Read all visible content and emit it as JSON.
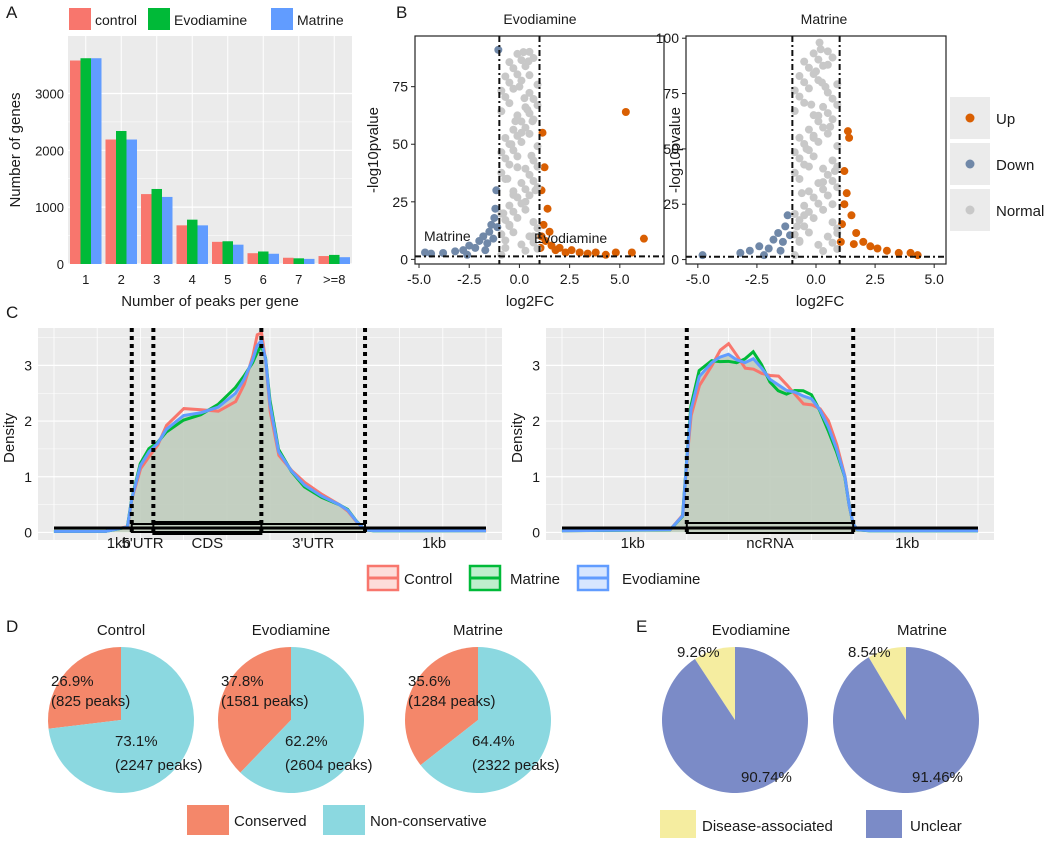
{
  "colors": {
    "control": "#F8766D",
    "evodiamine": "#00BA38",
    "matrine": "#619CFF",
    "up": "#D95F02",
    "down": "#7088A8",
    "normal": "#C8C8C8",
    "conserved": "#F4876A",
    "nonconservative": "#8BD8E0",
    "disease": "#F5EDA0",
    "unclear": "#7B8BC7",
    "panel_bg": "#EBEBEB",
    "fill_area": "#BFCCBD"
  },
  "panel_labels": {
    "a": "A",
    "b": "B",
    "c": "C",
    "d": "D",
    "e": "E"
  },
  "chart_data": [
    {
      "id": "A",
      "type": "bar",
      "legend": [
        "control",
        "Evodiamine",
        "Matrine"
      ],
      "categories": [
        "1",
        "2",
        "3",
        "4",
        "5",
        "6",
        "7",
        ">=8"
      ],
      "series": [
        {
          "name": "control",
          "values": [
            3580,
            2190,
            1230,
            680,
            390,
            190,
            110,
            140
          ]
        },
        {
          "name": "Evodiamine",
          "values": [
            3620,
            2340,
            1320,
            780,
            400,
            220,
            100,
            160
          ]
        },
        {
          "name": "Matrine",
          "values": [
            3620,
            2190,
            1180,
            680,
            340,
            180,
            90,
            120
          ]
        }
      ],
      "xlabel": "Number of peaks per gene",
      "ylabel": "Number of genes",
      "ylim": [
        0,
        3800
      ],
      "yticks": [
        0,
        1000,
        2000,
        3000
      ],
      "ytick_labels": [
        "0",
        "1000",
        "2000",
        "3000"
      ]
    },
    {
      "id": "B1",
      "type": "scatter",
      "title": "Evodiamine",
      "xlabel": "log2FC",
      "ylabel": "-log10pvalue",
      "xlim": [
        -5.2,
        7.2
      ],
      "ylim": [
        -2,
        97
      ],
      "xticks": [
        -5.0,
        -2.5,
        0.0,
        2.5,
        5.0
      ],
      "xtick_labels": [
        "-5.0",
        "-2.5",
        "0.0",
        "2.5",
        "5.0"
      ],
      "yticks": [
        0,
        25,
        50,
        75
      ],
      "ytick_labels": [
        "0",
        "25",
        "50",
        "75"
      ],
      "vlines": [
        -1,
        1
      ],
      "hline": 1.3,
      "annotations": [
        "Matrine",
        "Evodiamine"
      ],
      "points": [
        {
          "group": "Down",
          "x": -4.7,
          "y": 3
        },
        {
          "group": "Down",
          "x": -4.4,
          "y": 2.5
        },
        {
          "group": "Down",
          "x": -3.8,
          "y": 2.8
        },
        {
          "group": "Down",
          "x": -3.2,
          "y": 3.5
        },
        {
          "group": "Down",
          "x": -2.8,
          "y": 4
        },
        {
          "group": "Down",
          "x": -2.5,
          "y": 6
        },
        {
          "group": "Down",
          "x": -2.2,
          "y": 5
        },
        {
          "group": "Down",
          "x": -2.0,
          "y": 8
        },
        {
          "group": "Down",
          "x": -1.8,
          "y": 10
        },
        {
          "group": "Down",
          "x": -1.6,
          "y": 7
        },
        {
          "group": "Down",
          "x": -1.5,
          "y": 12
        },
        {
          "group": "Down",
          "x": -1.4,
          "y": 15
        },
        {
          "group": "Down",
          "x": -1.3,
          "y": 9
        },
        {
          "group": "Down",
          "x": -1.25,
          "y": 18
        },
        {
          "group": "Down",
          "x": -1.2,
          "y": 22
        },
        {
          "group": "Down",
          "x": -1.15,
          "y": 30
        },
        {
          "group": "Down",
          "x": -1.1,
          "y": 14
        },
        {
          "group": "Down",
          "x": -1.05,
          "y": 91
        },
        {
          "group": "Down",
          "x": -1.7,
          "y": 4
        },
        {
          "group": "Down",
          "x": -2.6,
          "y": 2
        },
        {
          "group": "Up",
          "x": 1.05,
          "y": 5
        },
        {
          "group": "Up",
          "x": 1.1,
          "y": 10
        },
        {
          "group": "Up",
          "x": 1.2,
          "y": 15
        },
        {
          "group": "Up",
          "x": 1.3,
          "y": 8
        },
        {
          "group": "Up",
          "x": 1.4,
          "y": 22
        },
        {
          "group": "Up",
          "x": 1.5,
          "y": 12
        },
        {
          "group": "Up",
          "x": 1.6,
          "y": 6
        },
        {
          "group": "Up",
          "x": 1.8,
          "y": 4
        },
        {
          "group": "Up",
          "x": 2.0,
          "y": 5
        },
        {
          "group": "Up",
          "x": 2.3,
          "y": 3
        },
        {
          "group": "Up",
          "x": 2.6,
          "y": 4
        },
        {
          "group": "Up",
          "x": 3.0,
          "y": 3
        },
        {
          "group": "Up",
          "x": 3.4,
          "y": 2.5
        },
        {
          "group": "Up",
          "x": 3.8,
          "y": 3
        },
        {
          "group": "Up",
          "x": 4.3,
          "y": 2
        },
        {
          "group": "Up",
          "x": 4.8,
          "y": 3
        },
        {
          "group": "Up",
          "x": 5.3,
          "y": 64
        },
        {
          "group": "Up",
          "x": 5.6,
          "y": 3
        },
        {
          "group": "Up",
          "x": 6.2,
          "y": 9
        },
        {
          "group": "Up",
          "x": 1.1,
          "y": 30
        },
        {
          "group": "Up",
          "x": 1.25,
          "y": 40
        },
        {
          "group": "Up",
          "x": 1.15,
          "y": 55
        },
        {
          "group": "Normal",
          "x": -0.8,
          "y": 20
        },
        {
          "group": "Normal",
          "x": -0.6,
          "y": 35
        },
        {
          "group": "Normal",
          "x": -0.4,
          "y": 50
        },
        {
          "group": "Normal",
          "x": -0.2,
          "y": 60
        },
        {
          "group": "Normal",
          "x": 0.0,
          "y": 75
        },
        {
          "group": "Normal",
          "x": 0.2,
          "y": 90
        },
        {
          "group": "Normal",
          "x": 0.4,
          "y": 65
        },
        {
          "group": "Normal",
          "x": 0.6,
          "y": 45
        },
        {
          "group": "Normal",
          "x": 0.8,
          "y": 30
        },
        {
          "group": "Normal",
          "x": -0.5,
          "y": 15
        },
        {
          "group": "Normal",
          "x": 0.3,
          "y": 25
        },
        {
          "group": "Normal",
          "x": 0.5,
          "y": 80
        },
        {
          "group": "Normal",
          "x": -0.1,
          "y": 40
        },
        {
          "group": "Normal",
          "x": 0.1,
          "y": 55
        },
        {
          "group": "Normal",
          "x": 0.7,
          "y": 10
        },
        {
          "group": "Normal",
          "x": -0.7,
          "y": 5
        },
        {
          "group": "Normal",
          "x": 0.25,
          "y": 70
        },
        {
          "group": "Normal",
          "x": -0.3,
          "y": 28
        },
        {
          "group": "Normal",
          "x": 0.65,
          "y": 60
        },
        {
          "group": "Normal",
          "x": 0.45,
          "y": 86
        }
      ]
    },
    {
      "id": "B2",
      "type": "scatter",
      "title": "Matrine",
      "xlabel": "log2FC",
      "ylabel": "-log10pvalue",
      "xlim": [
        -5.5,
        5.5
      ],
      "ylim": [
        -2,
        101
      ],
      "xticks": [
        -5.0,
        -2.5,
        0.0,
        2.5,
        5.0
      ],
      "xtick_labels": [
        "-5.0",
        "-2.5",
        "0.0",
        "2.5",
        "5.0"
      ],
      "yticks": [
        0,
        25,
        50,
        75,
        100
      ],
      "ytick_labels": [
        "0",
        "25",
        "50",
        "75",
        "100"
      ],
      "vlines": [
        -1,
        1
      ],
      "hline": 1.3,
      "points": [
        {
          "group": "Down",
          "x": -4.8,
          "y": 2
        },
        {
          "group": "Down",
          "x": -3.2,
          "y": 3
        },
        {
          "group": "Down",
          "x": -2.8,
          "y": 4
        },
        {
          "group": "Down",
          "x": -2.4,
          "y": 6
        },
        {
          "group": "Down",
          "x": -2.0,
          "y": 5
        },
        {
          "group": "Down",
          "x": -1.8,
          "y": 9
        },
        {
          "group": "Down",
          "x": -1.6,
          "y": 12
        },
        {
          "group": "Down",
          "x": -1.4,
          "y": 8
        },
        {
          "group": "Down",
          "x": -1.3,
          "y": 15
        },
        {
          "group": "Down",
          "x": -1.2,
          "y": 20
        },
        {
          "group": "Down",
          "x": -1.1,
          "y": 11
        },
        {
          "group": "Down",
          "x": -1.5,
          "y": 4
        },
        {
          "group": "Down",
          "x": -2.2,
          "y": 2
        },
        {
          "group": "Up",
          "x": 1.05,
          "y": 8
        },
        {
          "group": "Up",
          "x": 1.1,
          "y": 16
        },
        {
          "group": "Up",
          "x": 1.2,
          "y": 25
        },
        {
          "group": "Up",
          "x": 1.3,
          "y": 30
        },
        {
          "group": "Up",
          "x": 1.35,
          "y": 58
        },
        {
          "group": "Up",
          "x": 1.4,
          "y": 55
        },
        {
          "group": "Up",
          "x": 1.5,
          "y": 20
        },
        {
          "group": "Up",
          "x": 1.7,
          "y": 12
        },
        {
          "group": "Up",
          "x": 2.0,
          "y": 8
        },
        {
          "group": "Up",
          "x": 2.3,
          "y": 6
        },
        {
          "group": "Up",
          "x": 2.6,
          "y": 5
        },
        {
          "group": "Up",
          "x": 3.0,
          "y": 4
        },
        {
          "group": "Up",
          "x": 3.5,
          "y": 3
        },
        {
          "group": "Up",
          "x": 4.0,
          "y": 3
        },
        {
          "group": "Up",
          "x": 4.3,
          "y": 2
        },
        {
          "group": "Up",
          "x": 1.2,
          "y": 40
        },
        {
          "group": "Up",
          "x": 1.6,
          "y": 7
        },
        {
          "group": "Normal",
          "x": -0.8,
          "y": 15
        },
        {
          "group": "Normal",
          "x": -0.6,
          "y": 30
        },
        {
          "group": "Normal",
          "x": -0.4,
          "y": 50
        },
        {
          "group": "Normal",
          "x": -0.2,
          "y": 70
        },
        {
          "group": "Normal",
          "x": 0.0,
          "y": 85
        },
        {
          "group": "Normal",
          "x": 0.2,
          "y": 95
        },
        {
          "group": "Normal",
          "x": 0.4,
          "y": 78
        },
        {
          "group": "Normal",
          "x": 0.6,
          "y": 60
        },
        {
          "group": "Normal",
          "x": 0.8,
          "y": 40
        },
        {
          "group": "Normal",
          "x": -0.5,
          "y": 20
        },
        {
          "group": "Normal",
          "x": 0.3,
          "y": 35
        },
        {
          "group": "Normal",
          "x": 0.5,
          "y": 88
        },
        {
          "group": "Normal",
          "x": -0.1,
          "y": 55
        },
        {
          "group": "Normal",
          "x": 0.1,
          "y": 65
        },
        {
          "group": "Normal",
          "x": 0.7,
          "y": 25
        },
        {
          "group": "Normal",
          "x": -0.7,
          "y": 8
        },
        {
          "group": "Normal",
          "x": 0.25,
          "y": 80
        },
        {
          "group": "Normal",
          "x": -0.3,
          "y": 42
        },
        {
          "group": "Normal",
          "x": 0.9,
          "y": 12
        },
        {
          "group": "Normal",
          "x": 0.15,
          "y": 98
        }
      ],
      "legend": [
        "Up",
        "Down",
        "Normal"
      ]
    },
    {
      "id": "C",
      "type": "area",
      "ylabel": "Density",
      "yticks": [
        0,
        1,
        2,
        3
      ],
      "ylim": [
        -0.1,
        3.6
      ],
      "legend": [
        "Control",
        "Matrine",
        "Evodiamine"
      ],
      "left": {
        "x_range": [
          0,
          100
        ],
        "boundaries": [
          18,
          23,
          48,
          72
        ],
        "segment_labels": [
          "1kb",
          "5'UTR",
          "CDS",
          "3'UTR",
          "1kb"
        ],
        "profile_x": [
          0,
          12,
          17,
          18,
          20,
          22,
          24,
          26,
          30,
          34,
          38,
          42,
          44,
          46,
          47,
          48,
          49,
          50,
          52,
          55,
          58,
          62,
          66,
          68,
          70,
          72,
          74,
          80,
          100
        ],
        "profile_y": [
          0.02,
          0.02,
          0.1,
          0.6,
          1.2,
          1.45,
          1.6,
          1.85,
          2.1,
          2.15,
          2.25,
          2.5,
          2.75,
          3.1,
          3.35,
          3.45,
          3.1,
          2.3,
          1.45,
          1.1,
          0.85,
          0.65,
          0.5,
          0.4,
          0.2,
          0.05,
          0.03,
          0.03,
          0.03
        ]
      },
      "right": {
        "x_range": [
          0,
          100
        ],
        "boundaries": [
          30,
          70
        ],
        "segment_labels": [
          "1kb",
          "ncRNA",
          "1kb"
        ],
        "profile_x": [
          0,
          26,
          29,
          30,
          31,
          33,
          36,
          38,
          40,
          42,
          44,
          46,
          48,
          50,
          52,
          54,
          56,
          58,
          60,
          62,
          64,
          66,
          68,
          69,
          70,
          71,
          74,
          100
        ],
        "profile_y": [
          0.03,
          0.05,
          0.3,
          1.3,
          2.2,
          2.8,
          3.05,
          3.15,
          3.2,
          3.1,
          3.05,
          3.12,
          2.95,
          2.75,
          2.65,
          2.55,
          2.52,
          2.45,
          2.4,
          2.2,
          1.9,
          1.5,
          1.0,
          0.5,
          0.15,
          0.05,
          0.03,
          0.03
        ]
      }
    },
    {
      "id": "D",
      "type": "pie",
      "legend": [
        "Conserved",
        "Non-conservative"
      ],
      "pies": [
        {
          "title": "Control",
          "conserved_pct": 26.9,
          "label_conserved_pct": "26.9%",
          "label_conserved_peaks": "(825 peaks)",
          "label_non_pct": "73.1%",
          "label_non_peaks": "(2247 peaks)"
        },
        {
          "title": "Evodiamine",
          "conserved_pct": 37.8,
          "label_conserved_pct": "37.8%",
          "label_conserved_peaks": "(1581 peaks)",
          "label_non_pct": "62.2%",
          "label_non_peaks": "(2604 peaks)"
        },
        {
          "title": "Matrine",
          "conserved_pct": 35.6,
          "label_conserved_pct": "35.6%",
          "label_conserved_peaks": "(1284 peaks)",
          "label_non_pct": "64.4%",
          "label_non_peaks": "(2322 peaks)"
        }
      ]
    },
    {
      "id": "E",
      "type": "pie",
      "legend": [
        "Disease-associated",
        "Unclear"
      ],
      "pies": [
        {
          "title": "Evodiamine",
          "disease_pct": 9.26,
          "label_disease": "9.26%",
          "label_unclear": "90.74%"
        },
        {
          "title": "Matrine",
          "disease_pct": 8.54,
          "label_disease": "8.54%",
          "label_unclear": "91.46%"
        }
      ]
    }
  ]
}
